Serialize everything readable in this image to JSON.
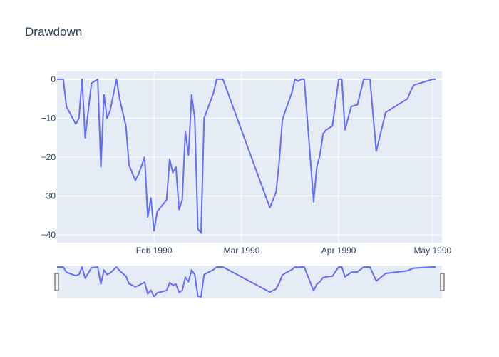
{
  "chart_data": {
    "type": "line",
    "title": "Drawdown",
    "xlabel": "",
    "ylabel": "",
    "xlim": [
      "1990-01-01",
      "1990-05-04"
    ],
    "ylim": [
      -42,
      2
    ],
    "grid": true,
    "colors": {
      "plot_bg": "#e5ecf6",
      "line": "#636efa",
      "text": "#2a3f5f"
    },
    "x_ticks": [
      {
        "date": "1990-02-01",
        "label": "Feb 1990"
      },
      {
        "date": "1990-03-01",
        "label": "Mar 1990"
      },
      {
        "date": "1990-04-01",
        "label": "Apr 1990"
      },
      {
        "date": "1990-05-01",
        "label": "May 1990"
      }
    ],
    "y_ticks": [
      0,
      -10,
      -20,
      -30,
      -40
    ],
    "y_tick_labels": [
      "0",
      "−10",
      "−20",
      "−30",
      "−40"
    ],
    "rangeslider": true,
    "series": [
      {
        "x": [
          "1990-01-01",
          "1990-01-03",
          "1990-01-04",
          "1990-01-07",
          "1990-01-08",
          "1990-01-09",
          "1990-01-10",
          "1990-01-12",
          "1990-01-14",
          "1990-01-15",
          "1990-01-16",
          "1990-01-17",
          "1990-01-18",
          "1990-01-20",
          "1990-01-21",
          "1990-01-23",
          "1990-01-24",
          "1990-01-26",
          "1990-01-27",
          "1990-01-29",
          "1990-01-30",
          "1990-01-31",
          "1990-02-01",
          "1990-02-02",
          "1990-02-03",
          "1990-02-05",
          "1990-02-06",
          "1990-02-07",
          "1990-02-08",
          "1990-02-09",
          "1990-02-10",
          "1990-02-11",
          "1990-02-12",
          "1990-02-13",
          "1990-02-14",
          "1990-02-15",
          "1990-02-16",
          "1990-02-17",
          "1990-02-20",
          "1990-02-21",
          "1990-02-22",
          "1990-02-23",
          "1990-03-10",
          "1990-03-12",
          "1990-03-13",
          "1990-03-14",
          "1990-03-15",
          "1990-03-17",
          "1990-03-18",
          "1990-03-19",
          "1990-03-20",
          "1990-03-21",
          "1990-03-24",
          "1990-03-25",
          "1990-03-26",
          "1990-03-27",
          "1990-03-28",
          "1990-03-30",
          "1990-04-01",
          "1990-04-02",
          "1990-04-03",
          "1990-04-05",
          "1990-04-07",
          "1990-04-09",
          "1990-04-11",
          "1990-04-13",
          "1990-04-16",
          "1990-04-23",
          "1990-04-24",
          "1990-04-25",
          "1990-05-01",
          "1990-05-02"
        ],
        "y": [
          0,
          0,
          -7,
          -11.5,
          -10,
          0,
          -15,
          -1,
          0,
          -22.5,
          -4,
          -10,
          -8,
          0,
          -5,
          -12,
          -22,
          -26,
          -24.5,
          -20,
          -35.5,
          -30.5,
          -39,
          -34,
          -33,
          -31,
          -20.5,
          -24,
          -22.5,
          -33.5,
          -31,
          -13.5,
          -19.5,
          -4,
          -10,
          -38.5,
          -39.5,
          -10,
          -3.5,
          0,
          0,
          0,
          -33,
          -29,
          -21,
          -10.5,
          -8,
          -3.5,
          0,
          -0.5,
          0,
          0,
          -31.5,
          -22.5,
          -19.5,
          -14,
          -13,
          -12,
          0,
          0,
          -13,
          -7,
          -6.5,
          0,
          0,
          -18.5,
          -8.5,
          -5,
          -3,
          -1.5,
          0,
          0
        ]
      }
    ]
  }
}
